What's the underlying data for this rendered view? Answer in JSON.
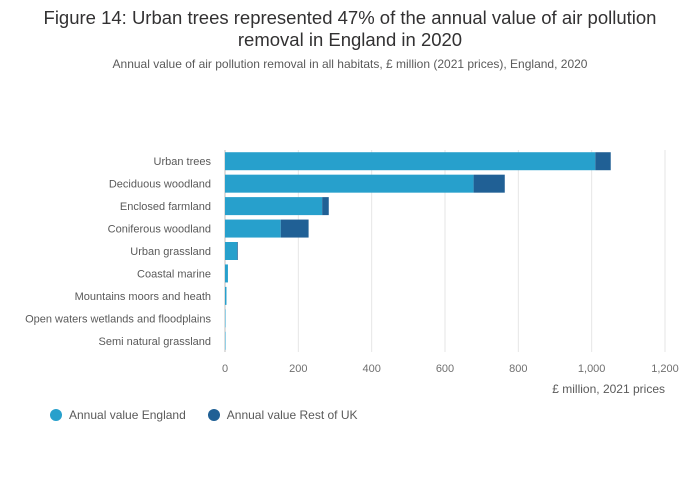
{
  "chart_data": {
    "type": "bar",
    "orientation": "horizontal",
    "stacked": true,
    "title": "Figure 14: Urban trees represented 47% of the annual value of air pollution removal in England in 2020",
    "title_lines": [
      "Figure 14: Urban trees represented 47% of the annual value of air pollution",
      "removal in England in 2020"
    ],
    "subtitle": "Annual value of air pollution removal in all habitats, £ million (2021 prices), England, 2020",
    "categories": [
      "Urban trees",
      "Deciduous woodland",
      "Enclosed farmland",
      "Coniferous woodland",
      "Urban grassland",
      "Coastal marine",
      "Mountains moors and heath",
      "Open waters wetlands and floodplains",
      "Semi natural grassland"
    ],
    "series": [
      {
        "name": "Annual value England",
        "color": "#27a0cc",
        "values": [
          1010,
          678,
          265,
          152,
          33,
          8,
          4,
          1,
          0.5
        ]
      },
      {
        "name": "Annual value Rest of UK",
        "color": "#206095",
        "values": [
          42,
          85,
          18,
          76,
          2,
          0,
          0,
          0,
          0
        ]
      }
    ],
    "xlabel": "£ million, 2021 prices",
    "ylabel": "",
    "xlim": [
      0,
      1200
    ],
    "xticks": [
      0,
      200,
      400,
      600,
      800,
      1000,
      1200
    ],
    "xtick_labels": [
      "0",
      "200",
      "400",
      "600",
      "800",
      "1,000",
      "1,200"
    ],
    "grid": true,
    "legend": "bottom-left"
  }
}
